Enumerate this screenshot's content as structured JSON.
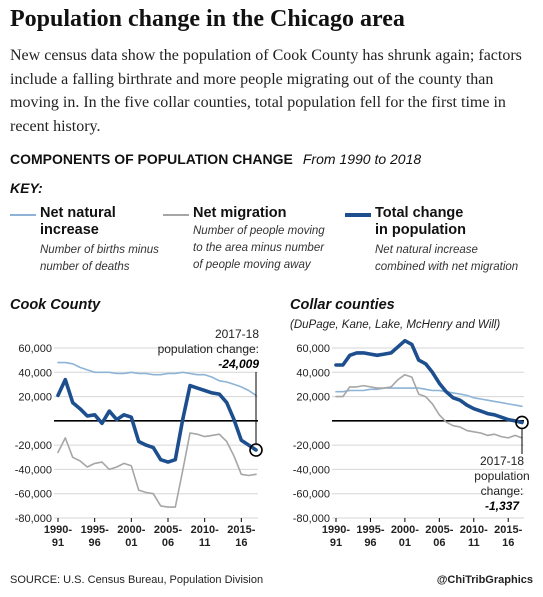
{
  "title": "Population change in the Chicago area",
  "dek": "New census data show the population of Cook County has shrunk again; factors include a falling birthrate and more people migrating out of the county than moving in. In the five collar counties, total population fell for the first time in recent history.",
  "section": {
    "heading": "COMPONENTS OF POPULATION CHANGE",
    "range": "From 1990 to 2018"
  },
  "key": {
    "heading": "KEY:",
    "items": [
      {
        "line1": "Net natural",
        "line2": "increase",
        "desc1": "Number of births minus",
        "desc2": "number of deaths",
        "desc3": ""
      },
      {
        "line1": "Net migration",
        "line2": "",
        "desc1": "Number of people moving",
        "desc2": "to the area minus number",
        "desc3": "of people moving away"
      },
      {
        "line1": "Total change",
        "line2": "in population",
        "desc1": "Net natural increase",
        "desc2": "combined with net migration",
        "desc3": ""
      }
    ]
  },
  "colors": {
    "natural": "#8db4d6",
    "migration": "#a6a6a6",
    "total": "#1d4f8f",
    "axis": "#000000",
    "grid": "#d6d6d6",
    "text": "#222222"
  },
  "icon": "circle-marker-icon",
  "chart_data": [
    {
      "type": "line",
      "title": "Cook County",
      "subtitle": "",
      "ylim": [
        -80000,
        60000
      ],
      "yticks": [
        -80000,
        -60000,
        -40000,
        -20000,
        20000,
        40000,
        60000
      ],
      "ytick_labels": [
        "-80,000",
        "-60,000",
        "-40,000",
        "-20,000",
        "20,000",
        "40,000",
        "60,000"
      ],
      "xtick_labels": [
        [
          "1990-",
          "91"
        ],
        [
          "1995-",
          "96"
        ],
        [
          "2000-",
          "01"
        ],
        [
          "2005-",
          "06"
        ],
        [
          "2010-",
          "11"
        ],
        [
          "2015-",
          "16"
        ]
      ],
      "xtick_index": [
        0,
        5,
        10,
        15,
        20,
        25
      ],
      "x": [
        "1990-91",
        "1991-92",
        "1992-93",
        "1993-94",
        "1994-95",
        "1995-96",
        "1996-97",
        "1997-98",
        "1998-99",
        "1999-00",
        "2000-01",
        "2001-02",
        "2002-03",
        "2003-04",
        "2004-05",
        "2005-06",
        "2006-07",
        "2007-08",
        "2008-09",
        "2009-10",
        "2010-11",
        "2011-12",
        "2012-13",
        "2013-14",
        "2014-15",
        "2015-16",
        "2016-17",
        "2017-18"
      ],
      "series": [
        {
          "name": "Net natural increase",
          "key": "natural",
          "values": [
            48000,
            48000,
            47000,
            44000,
            42000,
            40000,
            40000,
            40000,
            39000,
            39000,
            40000,
            39000,
            39000,
            38000,
            38000,
            39000,
            39000,
            40000,
            39000,
            38000,
            38000,
            36000,
            33000,
            32000,
            30000,
            28000,
            25000,
            21000
          ]
        },
        {
          "name": "Net migration",
          "key": "migration",
          "values": [
            -26000,
            -14000,
            -30000,
            -33000,
            -38000,
            -35000,
            -34000,
            -40000,
            -38000,
            -35000,
            -37000,
            -57000,
            -59000,
            -60000,
            -70000,
            -71000,
            -71000,
            -41000,
            -10000,
            -11000,
            -13000,
            -12000,
            -11000,
            -17000,
            -29000,
            -44000,
            -45000,
            -44000
          ]
        },
        {
          "name": "Total change",
          "key": "total",
          "values": [
            21000,
            34000,
            15000,
            10000,
            4000,
            5000,
            -2000,
            8000,
            1000,
            5000,
            3000,
            -17000,
            -20000,
            -22000,
            -32000,
            -34000,
            -32000,
            1000,
            29000,
            27000,
            25000,
            23000,
            22000,
            15000,
            1000,
            -16000,
            -20000,
            -24009
          ]
        }
      ],
      "annotation": {
        "line1": "2017-18",
        "line2": "population change:",
        "value": "-24,009",
        "point_index": 27,
        "point_value": -24009
      }
    },
    {
      "type": "line",
      "title": "Collar counties",
      "subtitle": "(DuPage, Kane, Lake, McHenry and Will)",
      "ylim": [
        -80000,
        60000
      ],
      "yticks": [
        -80000,
        -60000,
        -40000,
        -20000,
        20000,
        40000,
        60000
      ],
      "ytick_labels": [
        "-80,000",
        "-60,000",
        "-40,000",
        "-20,000",
        "20,000",
        "40,000",
        "60,000"
      ],
      "xtick_labels": [
        [
          "1990-",
          "91"
        ],
        [
          "1995-",
          "96"
        ],
        [
          "2000-",
          "01"
        ],
        [
          "2005-",
          "06"
        ],
        [
          "2010-",
          "11"
        ],
        [
          "2015-",
          "16"
        ]
      ],
      "xtick_index": [
        0,
        5,
        10,
        15,
        20,
        25
      ],
      "x": [
        "1990-91",
        "1991-92",
        "1992-93",
        "1993-94",
        "1994-95",
        "1995-96",
        "1996-97",
        "1997-98",
        "1998-99",
        "1999-00",
        "2000-01",
        "2001-02",
        "2002-03",
        "2003-04",
        "2004-05",
        "2005-06",
        "2006-07",
        "2007-08",
        "2008-09",
        "2009-10",
        "2010-11",
        "2011-12",
        "2012-13",
        "2013-14",
        "2014-15",
        "2015-16",
        "2016-17",
        "2017-18"
      ],
      "series": [
        {
          "name": "Net natural increase",
          "key": "natural",
          "values": [
            24000,
            24000,
            25000,
            25000,
            25000,
            26000,
            26000,
            27000,
            27000,
            27000,
            27000,
            27000,
            27000,
            26000,
            25000,
            25000,
            24000,
            23000,
            22000,
            21000,
            19000,
            18000,
            17000,
            16000,
            15000,
            14000,
            13000,
            12000
          ]
        },
        {
          "name": "Net migration",
          "key": "migration",
          "values": [
            20000,
            20000,
            28000,
            28000,
            29000,
            28000,
            27000,
            27000,
            28000,
            34000,
            38000,
            36000,
            22000,
            20000,
            14000,
            5000,
            -1000,
            -4000,
            -5000,
            -8000,
            -9000,
            -10000,
            -12000,
            -11000,
            -13000,
            -14000,
            -12000,
            -14000
          ]
        },
        {
          "name": "Total change",
          "key": "total",
          "values": [
            46000,
            46000,
            54000,
            56000,
            56000,
            55000,
            54000,
            55000,
            56000,
            61000,
            66000,
            63000,
            50000,
            47000,
            40000,
            31000,
            24000,
            19000,
            17000,
            13000,
            10000,
            8000,
            6000,
            5000,
            3000,
            1000,
            0,
            -1337
          ]
        }
      ],
      "annotation": {
        "line1": "2017-18",
        "line2": "population",
        "line3": "change:",
        "value": "-1,337",
        "point_index": 27,
        "point_value": -1337
      }
    }
  ],
  "footer": {
    "source": "SOURCE: U.S. Census Bureau, Population Division",
    "credit": "@ChiTribGraphics"
  }
}
